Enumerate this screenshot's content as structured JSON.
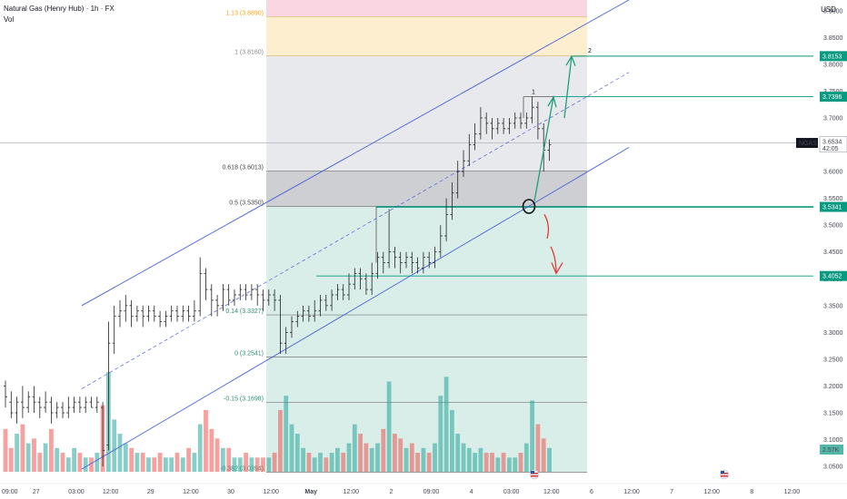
{
  "header": {
    "symbol_title": "Natural Gas (Henry Hub) · 1h · FX",
    "vol_label": "Vol",
    "currency": "USD"
  },
  "colors": {
    "up": "#26a69a",
    "down": "#ef5350",
    "channel": "#4a62d8",
    "teal_line": "#089981",
    "arrow_up": "#1e9e7a",
    "arrow_down": "#e53935",
    "fib_zone_green": "#d5ece7",
    "fib_zone_gray": "#e6e7ea",
    "fib_zone_dark": "#c9cacd",
    "fib_zone_yellow": "#fdeccb",
    "fib_zone_pink": "#f9d6e2"
  },
  "chart_data": {
    "type": "candlestick",
    "symbol": "NGAS",
    "timeframe": "1h",
    "y_axis": {
      "range": [
        3.04,
        3.92
      ],
      "ticks": [
        "3.9000",
        "3.8500",
        "3.8000",
        "3.7500",
        "3.7000",
        "3.6500",
        "3.6000",
        "3.5500",
        "3.5000",
        "3.4500",
        "3.4000",
        "3.3500",
        "3.3000",
        "3.2500",
        "3.2000",
        "3.1500",
        "3.1000",
        "3.0500"
      ],
      "tick_values": [
        3.9,
        3.85,
        3.8,
        3.75,
        3.7,
        3.65,
        3.6,
        3.55,
        3.5,
        3.45,
        3.4,
        3.35,
        3.3,
        3.25,
        3.2,
        3.15,
        3.1,
        3.05
      ]
    },
    "x_axis": {
      "ticks": [
        "09:00",
        "27",
        "03:00",
        "12:00",
        "29",
        "12:00",
        "30",
        "12:00",
        "May",
        "12:00",
        "2",
        "09:00",
        "4",
        "03:00",
        "12:00",
        "6",
        "12:00",
        "7",
        "12:00",
        "8",
        "12:00"
      ],
      "tick_index": [
        0,
        6,
        13,
        19,
        26,
        33,
        40,
        47,
        54,
        61,
        68,
        75,
        82,
        89,
        96,
        103,
        110,
        117,
        124,
        131,
        138
      ]
    },
    "current_price": {
      "symbol": "NGAS",
      "value": "3.6534",
      "countdown": "42:05"
    },
    "price_tags": [
      {
        "label": "3.8153",
        "value": 3.8153
      },
      {
        "label": "3.7396",
        "value": 3.7396
      },
      {
        "label": "3.5341",
        "value": 3.5341
      },
      {
        "label": "3.4052",
        "value": 3.4052
      }
    ],
    "volume_tag": "2.57K",
    "fibonacci": [
      {
        "label": "1.13 (3.8890)",
        "value": 3.889
      },
      {
        "label": "1 (3.8160)",
        "value": 3.816
      },
      {
        "label": "0.618 (3.6013)",
        "value": 3.6013
      },
      {
        "label": "0.5 (3.5350)",
        "value": 3.535
      },
      {
        "label": "0.14 (3.3327)",
        "value": 3.3327
      },
      {
        "label": "0 (3.2541)",
        "value": 3.2541
      },
      {
        "label": "-0.15 (3.1698)",
        "value": 3.1698
      },
      {
        "label": "-0.382 (3.0394)",
        "value": 3.0394
      }
    ],
    "wave_labels": [
      "1",
      "2"
    ],
    "candles": [
      [
        3.2,
        3.18,
        3.21,
        3.16
      ],
      [
        3.17,
        3.15,
        3.19,
        3.14
      ],
      [
        3.15,
        3.17,
        3.18,
        3.13
      ],
      [
        3.17,
        3.16,
        3.2,
        3.14
      ],
      [
        3.16,
        3.18,
        3.19,
        3.15
      ],
      [
        3.18,
        3.17,
        3.2,
        3.15
      ],
      [
        3.17,
        3.16,
        3.18,
        3.14
      ],
      [
        3.16,
        3.17,
        3.19,
        3.15
      ],
      [
        3.17,
        3.15,
        3.18,
        3.13
      ],
      [
        3.15,
        3.16,
        3.17,
        3.14
      ],
      [
        3.16,
        3.15,
        3.17,
        3.14
      ],
      [
        3.15,
        3.16,
        3.18,
        3.14
      ],
      [
        3.16,
        3.17,
        3.18,
        3.15
      ],
      [
        3.17,
        3.16,
        3.18,
        3.15
      ],
      [
        3.16,
        3.17,
        3.18,
        3.15
      ],
      [
        3.17,
        3.16,
        3.18,
        3.16
      ],
      [
        3.16,
        3.17,
        3.18,
        3.15
      ],
      [
        3.16,
        3.08,
        3.17,
        3.05
      ],
      [
        3.09,
        3.28,
        3.32,
        3.08
      ],
      [
        3.28,
        3.33,
        3.35,
        3.26
      ],
      [
        3.33,
        3.34,
        3.36,
        3.31
      ],
      [
        3.34,
        3.35,
        3.37,
        3.32
      ],
      [
        3.35,
        3.33,
        3.36,
        3.31
      ],
      [
        3.33,
        3.34,
        3.35,
        3.32
      ],
      [
        3.34,
        3.33,
        3.35,
        3.31
      ],
      [
        3.33,
        3.34,
        3.35,
        3.32
      ],
      [
        3.34,
        3.33,
        3.35,
        3.32
      ],
      [
        3.33,
        3.32,
        3.34,
        3.31
      ],
      [
        3.32,
        3.33,
        3.34,
        3.31
      ],
      [
        3.33,
        3.34,
        3.35,
        3.32
      ],
      [
        3.34,
        3.33,
        3.35,
        3.32
      ],
      [
        3.33,
        3.34,
        3.35,
        3.32
      ],
      [
        3.34,
        3.33,
        3.35,
        3.32
      ],
      [
        3.33,
        3.34,
        3.36,
        3.32
      ],
      [
        3.34,
        3.41,
        3.44,
        3.33
      ],
      [
        3.41,
        3.38,
        3.42,
        3.36
      ],
      [
        3.38,
        3.36,
        3.39,
        3.33
      ],
      [
        3.36,
        3.35,
        3.37,
        3.33
      ],
      [
        3.35,
        3.38,
        3.39,
        3.34
      ],
      [
        3.38,
        3.36,
        3.39,
        3.35
      ],
      [
        3.36,
        3.37,
        3.38,
        3.35
      ],
      [
        3.37,
        3.38,
        3.39,
        3.36
      ],
      [
        3.38,
        3.37,
        3.39,
        3.36
      ],
      [
        3.37,
        3.38,
        3.39,
        3.36
      ],
      [
        3.38,
        3.37,
        3.39,
        3.35
      ],
      [
        3.37,
        3.36,
        3.38,
        3.34
      ],
      [
        3.36,
        3.37,
        3.38,
        3.35
      ],
      [
        3.37,
        3.36,
        3.38,
        3.34
      ],
      [
        3.36,
        3.28,
        3.37,
        3.26
      ],
      [
        3.28,
        3.3,
        3.31,
        3.26
      ],
      [
        3.3,
        3.32,
        3.33,
        3.29
      ],
      [
        3.32,
        3.33,
        3.34,
        3.31
      ],
      [
        3.33,
        3.34,
        3.35,
        3.32
      ],
      [
        3.34,
        3.33,
        3.35,
        3.32
      ],
      [
        3.33,
        3.34,
        3.36,
        3.32
      ],
      [
        3.34,
        3.36,
        3.37,
        3.33
      ],
      [
        3.36,
        3.35,
        3.37,
        3.34
      ],
      [
        3.35,
        3.37,
        3.38,
        3.34
      ],
      [
        3.37,
        3.38,
        3.39,
        3.36
      ],
      [
        3.38,
        3.37,
        3.39,
        3.36
      ],
      [
        3.37,
        3.39,
        3.41,
        3.36
      ],
      [
        3.39,
        3.41,
        3.42,
        3.38
      ],
      [
        3.41,
        3.4,
        3.42,
        3.38
      ],
      [
        3.4,
        3.38,
        3.41,
        3.37
      ],
      [
        3.38,
        3.41,
        3.43,
        3.37
      ],
      [
        3.41,
        3.44,
        3.45,
        3.4
      ],
      [
        3.44,
        3.43,
        3.45,
        3.41
      ],
      [
        3.43,
        3.45,
        3.53,
        3.42
      ],
      [
        3.45,
        3.44,
        3.46,
        3.42
      ],
      [
        3.44,
        3.43,
        3.45,
        3.41
      ],
      [
        3.43,
        3.44,
        3.45,
        3.42
      ],
      [
        3.44,
        3.43,
        3.45,
        3.41
      ],
      [
        3.43,
        3.42,
        3.44,
        3.41
      ],
      [
        3.42,
        3.44,
        3.45,
        3.41
      ],
      [
        3.44,
        3.43,
        3.45,
        3.42
      ],
      [
        3.43,
        3.45,
        3.46,
        3.42
      ],
      [
        3.45,
        3.48,
        3.5,
        3.44
      ],
      [
        3.48,
        3.52,
        3.55,
        3.47
      ],
      [
        3.52,
        3.56,
        3.58,
        3.51
      ],
      [
        3.56,
        3.6,
        3.62,
        3.55
      ],
      [
        3.6,
        3.62,
        3.64,
        3.59
      ],
      [
        3.62,
        3.65,
        3.67,
        3.61
      ],
      [
        3.65,
        3.67,
        3.69,
        3.64
      ],
      [
        3.67,
        3.7,
        3.72,
        3.66
      ],
      [
        3.7,
        3.69,
        3.71,
        3.67
      ],
      [
        3.69,
        3.68,
        3.7,
        3.66
      ],
      [
        3.68,
        3.69,
        3.7,
        3.67
      ],
      [
        3.69,
        3.68,
        3.7,
        3.67
      ],
      [
        3.68,
        3.69,
        3.7,
        3.67
      ],
      [
        3.69,
        3.7,
        3.71,
        3.68
      ],
      [
        3.7,
        3.69,
        3.71,
        3.68
      ],
      [
        3.69,
        3.7,
        3.71,
        3.68
      ],
      [
        3.7,
        3.72,
        3.74,
        3.69
      ],
      [
        3.72,
        3.68,
        3.73,
        3.66
      ],
      [
        3.68,
        3.64,
        3.69,
        3.6
      ],
      [
        3.64,
        3.65,
        3.66,
        3.62
      ]
    ],
    "volumes": [
      0.9,
      0.5,
      0.8,
      1.0,
      0.6,
      0.7,
      0.4,
      0.6,
      0.9,
      0.5,
      0.4,
      0.3,
      0.5,
      0.4,
      0.3,
      0.3,
      0.4,
      1.4,
      2.1,
      1.1,
      0.8,
      0.6,
      0.5,
      0.4,
      0.4,
      0.3,
      0.3,
      0.4,
      0.3,
      0.3,
      0.4,
      0.3,
      0.5,
      0.4,
      1.0,
      1.3,
      0.9,
      0.7,
      0.5,
      0.5,
      0.3,
      0.3,
      0.4,
      0.3,
      0.3,
      0.3,
      0.3,
      0.4,
      1.3,
      1.6,
      1.0,
      0.8,
      0.5,
      0.4,
      0.3,
      0.4,
      0.3,
      0.4,
      0.5,
      0.4,
      0.6,
      1.0,
      0.8,
      0.6,
      0.5,
      0.6,
      0.9,
      1.9,
      0.8,
      0.7,
      0.5,
      0.6,
      0.4,
      0.5,
      0.4,
      0.6,
      1.6,
      2.0,
      1.3,
      0.8,
      0.6,
      0.5,
      0.4,
      0.5,
      0.4,
      0.4,
      0.3,
      0.4,
      0.3,
      0.3,
      0.4,
      0.6,
      1.5,
      1.0,
      0.7,
      0.5
    ]
  }
}
